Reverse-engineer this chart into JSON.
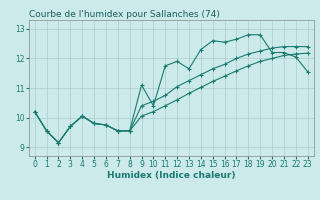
{
  "title": "Courbe de l'humidex pour Sallanches (74)",
  "xlabel": "Humidex (Indice chaleur)",
  "bg_color": "#cceaea",
  "grid_color": "#aacccc",
  "line_color": "#1a7a6e",
  "xlim": [
    -0.5,
    23.5
  ],
  "ylim": [
    8.7,
    13.3
  ],
  "yticks": [
    9,
    10,
    11,
    12,
    13
  ],
  "xticks": [
    0,
    1,
    2,
    3,
    4,
    5,
    6,
    7,
    8,
    9,
    10,
    11,
    12,
    13,
    14,
    15,
    16,
    17,
    18,
    19,
    20,
    21,
    22,
    23
  ],
  "line1_x": [
    0,
    1,
    2,
    3,
    4,
    5,
    6,
    7,
    8,
    9,
    10,
    11,
    12,
    13,
    14,
    15,
    16,
    17,
    18,
    19,
    20,
    21,
    22,
    23
  ],
  "line1_y": [
    10.2,
    9.55,
    9.15,
    9.7,
    10.05,
    9.8,
    9.75,
    9.55,
    9.55,
    11.1,
    10.4,
    11.75,
    11.9,
    11.65,
    12.3,
    12.6,
    12.55,
    12.65,
    12.8,
    12.8,
    12.2,
    12.2,
    12.05,
    11.55
  ],
  "line2_x": [
    0,
    1,
    2,
    3,
    4,
    5,
    6,
    7,
    8,
    9,
    10,
    11,
    12,
    13,
    14,
    15,
    16,
    17,
    18,
    19,
    20,
    21,
    22,
    23
  ],
  "line2_y": [
    10.2,
    9.55,
    9.15,
    9.7,
    10.05,
    9.8,
    9.75,
    9.55,
    9.55,
    10.4,
    10.55,
    10.75,
    11.05,
    11.25,
    11.45,
    11.65,
    11.8,
    12.0,
    12.15,
    12.25,
    12.35,
    12.4,
    12.4,
    12.4
  ],
  "line3_x": [
    0,
    1,
    2,
    3,
    4,
    5,
    6,
    7,
    8,
    9,
    10,
    11,
    12,
    13,
    14,
    15,
    16,
    17,
    18,
    19,
    20,
    21,
    22,
    23
  ],
  "line3_y": [
    10.2,
    9.55,
    9.15,
    9.7,
    10.05,
    9.8,
    9.75,
    9.55,
    9.55,
    10.05,
    10.2,
    10.4,
    10.6,
    10.82,
    11.02,
    11.22,
    11.4,
    11.58,
    11.75,
    11.9,
    12.0,
    12.1,
    12.15,
    12.18
  ],
  "marker": "+",
  "markersize": 3,
  "linewidth": 0.8,
  "title_fontsize": 6.5,
  "label_fontsize": 6.5,
  "tick_fontsize": 5.5
}
